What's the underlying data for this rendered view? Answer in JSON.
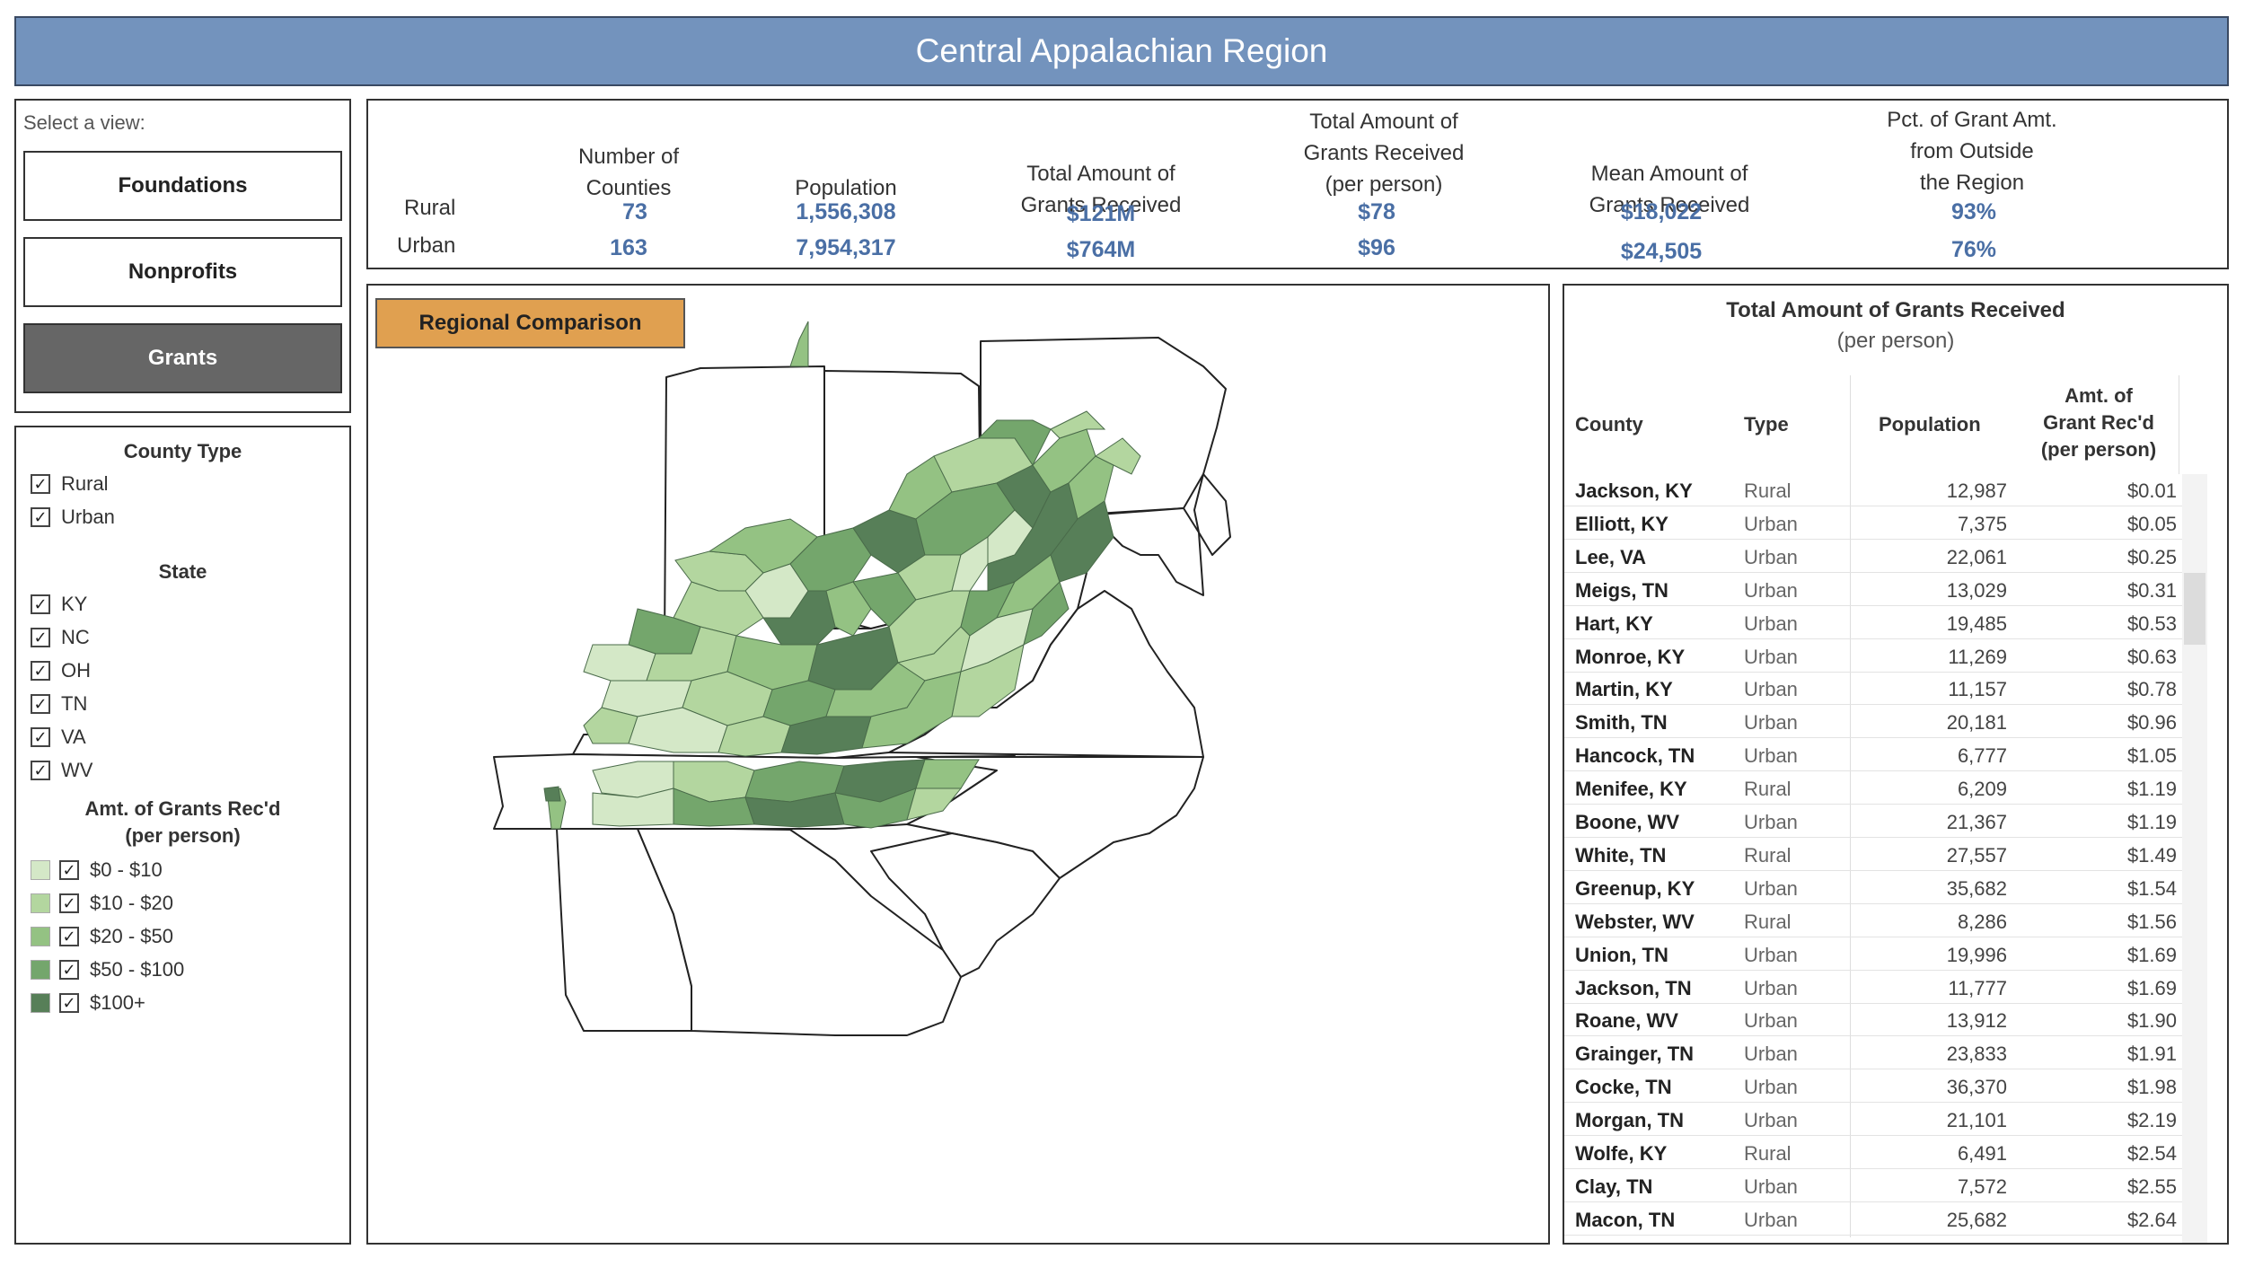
{
  "title": "Central Appalachian Region",
  "view_selector": {
    "label": "Select a view:",
    "buttons": [
      "Foundations",
      "Nonprofits",
      "Grants"
    ],
    "active": "Grants"
  },
  "filters": {
    "county_type": {
      "title": "County Type",
      "options": [
        "Rural",
        "Urban"
      ]
    },
    "state": {
      "title": "State",
      "options": [
        "KY",
        "NC",
        "OH",
        "TN",
        "VA",
        "WV"
      ]
    },
    "amount": {
      "title_line1": "Amt. of Grants Rec'd",
      "title_line2": "(per person)",
      "ranges": [
        {
          "label": "$0 - $10",
          "color": "#d4e8c7"
        },
        {
          "label": "$10 - $20",
          "color": "#b3d69f"
        },
        {
          "label": "$20 - $50",
          "color": "#94c283"
        },
        {
          "label": "$50 - $100",
          "color": "#74a66c"
        },
        {
          "label": "$100+",
          "color": "#577f58"
        }
      ]
    }
  },
  "summary": {
    "headers": [
      {
        "l1": "",
        "l2": "Number of",
        "l3": "Counties"
      },
      {
        "l1": "",
        "l2": "",
        "l3": "Population"
      },
      {
        "l1": "",
        "l2": "Total Amount of",
        "l3": "Grants Received"
      },
      {
        "l1": "Total Amount of",
        "l2": "Grants Received",
        "l3": "(per person)"
      },
      {
        "l1": "",
        "l2": "Mean Amount of",
        "l3": "Grants Received"
      },
      {
        "l1": "Pct. of Grant Amt.",
        "l2": "from Outside",
        "l3": "the Region"
      }
    ],
    "rows": [
      {
        "label": "Rural",
        "values": [
          "73",
          "1,556,308",
          "$121M",
          "$78",
          "$18,022",
          "93%"
        ]
      },
      {
        "label": "Urban",
        "values": [
          "163",
          "7,954,317",
          "$764M",
          "$96",
          "$24,505",
          "76%"
        ]
      }
    ]
  },
  "map": {
    "button_label": "Regional Comparison"
  },
  "table": {
    "title": "Total Amount of Grants Received",
    "subtitle": "(per person)",
    "headers": {
      "county": "County",
      "type": "Type",
      "population": "Population",
      "amt_l1": "Amt. of",
      "amt_l2": "Grant Rec'd",
      "amt_l3": "(per person)"
    },
    "rows": [
      {
        "county": "Jackson, KY",
        "type": "Rural",
        "population": "12,987",
        "amount": "$0.01"
      },
      {
        "county": "Elliott, KY",
        "type": "Urban",
        "population": "7,375",
        "amount": "$0.05"
      },
      {
        "county": "Lee, VA",
        "type": "Urban",
        "population": "22,061",
        "amount": "$0.25"
      },
      {
        "county": "Meigs, TN",
        "type": "Urban",
        "population": "13,029",
        "amount": "$0.31"
      },
      {
        "county": "Hart, KY",
        "type": "Urban",
        "population": "19,485",
        "amount": "$0.53"
      },
      {
        "county": "Monroe, KY",
        "type": "Urban",
        "population": "11,269",
        "amount": "$0.63"
      },
      {
        "county": "Martin, KY",
        "type": "Urban",
        "population": "11,157",
        "amount": "$0.78"
      },
      {
        "county": "Smith, TN",
        "type": "Urban",
        "population": "20,181",
        "amount": "$0.96"
      },
      {
        "county": "Hancock, TN",
        "type": "Urban",
        "population": "6,777",
        "amount": "$1.05"
      },
      {
        "county": "Menifee, KY",
        "type": "Rural",
        "population": "6,209",
        "amount": "$1.19"
      },
      {
        "county": "Boone, WV",
        "type": "Urban",
        "population": "21,367",
        "amount": "$1.19"
      },
      {
        "county": "White, TN",
        "type": "Rural",
        "population": "27,557",
        "amount": "$1.49"
      },
      {
        "county": "Greenup, KY",
        "type": "Urban",
        "population": "35,682",
        "amount": "$1.54"
      },
      {
        "county": "Webster, WV",
        "type": "Rural",
        "population": "8,286",
        "amount": "$1.56"
      },
      {
        "county": "Union, TN",
        "type": "Urban",
        "population": "19,996",
        "amount": "$1.69"
      },
      {
        "county": "Jackson, TN",
        "type": "Urban",
        "population": "11,777",
        "amount": "$1.69"
      },
      {
        "county": "Roane, WV",
        "type": "Urban",
        "population": "13,912",
        "amount": "$1.90"
      },
      {
        "county": "Grainger, TN",
        "type": "Urban",
        "population": "23,833",
        "amount": "$1.91"
      },
      {
        "county": "Cocke, TN",
        "type": "Urban",
        "population": "36,370",
        "amount": "$1.98"
      },
      {
        "county": "Morgan, TN",
        "type": "Urban",
        "population": "21,101",
        "amount": "$2.19"
      },
      {
        "county": "Wolfe, KY",
        "type": "Rural",
        "population": "6,491",
        "amount": "$2.54"
      },
      {
        "county": "Clay, TN",
        "type": "Urban",
        "population": "7,572",
        "amount": "$2.55"
      },
      {
        "county": "Macon, TN",
        "type": "Urban",
        "population": "25,682",
        "amount": "$2.64"
      }
    ]
  }
}
